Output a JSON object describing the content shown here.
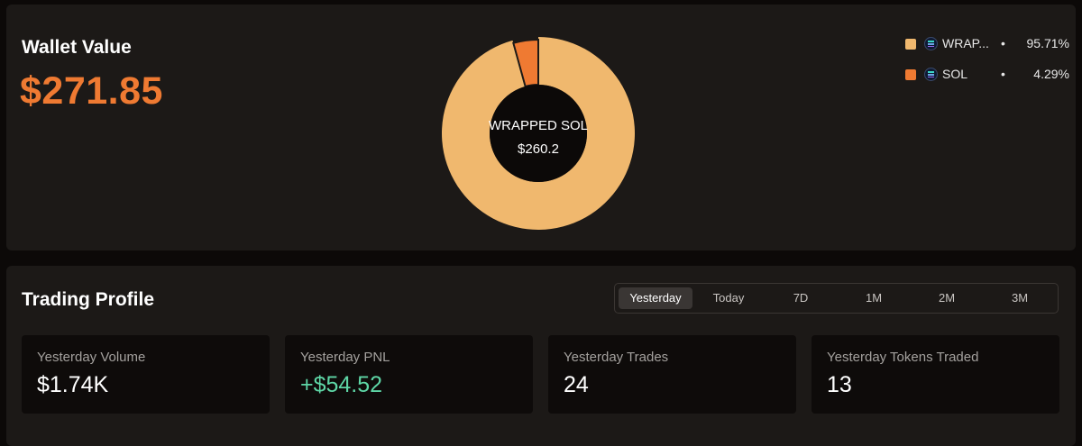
{
  "wallet": {
    "title": "Wallet Value",
    "value": "$271.85",
    "chart_center": {
      "name": "WRAPPED SOL",
      "value": "$260.2"
    },
    "legend": [
      {
        "name": "WRAP...",
        "percent": "95.71%",
        "color": "#f0b86e",
        "icon": "solana-token-icon"
      },
      {
        "name": "SOL",
        "percent": "4.29%",
        "color": "#ef7a32",
        "icon": "solana-token-icon"
      }
    ]
  },
  "chart_data": {
    "type": "pie",
    "categories": [
      "WRAPPED SOL",
      "SOL"
    ],
    "values": [
      95.71,
      4.29
    ],
    "colors": [
      "#f0b86e",
      "#ef7a32"
    ],
    "donut": true,
    "highlighted": "SOL",
    "center_label": "WRAPPED SOL",
    "center_value": "$260.2",
    "legend_position": "top-right"
  },
  "trading": {
    "title": "Trading Profile",
    "tabs": [
      "Yesterday",
      "Today",
      "7D",
      "1M",
      "2M",
      "3M"
    ],
    "active_tab": "Yesterday",
    "stats": [
      {
        "label": "Yesterday Volume",
        "value": "$1.74K"
      },
      {
        "label": "Yesterday PNL",
        "value": "+$54.52"
      },
      {
        "label": "Yesterday Trades",
        "value": "24"
      },
      {
        "label": "Yesterday Tokens Traded",
        "value": "13"
      }
    ]
  }
}
